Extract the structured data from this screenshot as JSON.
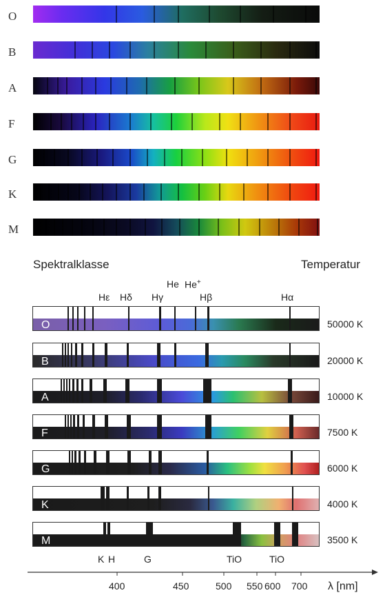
{
  "photo_spectra": [
    {
      "label": "O"
    },
    {
      "label": "B"
    },
    {
      "label": "A"
    },
    {
      "label": "F"
    },
    {
      "label": "G"
    },
    {
      "label": "K"
    },
    {
      "label": "M"
    }
  ],
  "diagram": {
    "left_heading": "Spektralklasse",
    "right_heading": "Temperatur",
    "line_labels": [
      {
        "text": "Hε"
      },
      {
        "text": "Hδ"
      },
      {
        "text": "Hγ"
      },
      {
        "text": "He"
      },
      {
        "text": "He+"
      },
      {
        "text": "Hβ"
      },
      {
        "text": "Hα"
      }
    ],
    "classes": [
      {
        "letter": "O",
        "temperature": "50000 K"
      },
      {
        "letter": "B",
        "temperature": "20000 K"
      },
      {
        "letter": "A",
        "temperature": "10000 K"
      },
      {
        "letter": "F",
        "temperature": "7500 K"
      },
      {
        "letter": "G",
        "temperature": "6000 K"
      },
      {
        "letter": "K",
        "temperature": "4000 K"
      },
      {
        "letter": "M",
        "temperature": "3500 K"
      }
    ],
    "molecular_labels": [
      {
        "text": "K"
      },
      {
        "text": "H"
      },
      {
        "text": "G"
      },
      {
        "text": "TiO"
      },
      {
        "text": "TiO"
      }
    ],
    "axis": {
      "ticks": [
        "400",
        "450",
        "500",
        "550",
        "600",
        "700"
      ],
      "unit_label": "λ [nm]"
    }
  }
}
